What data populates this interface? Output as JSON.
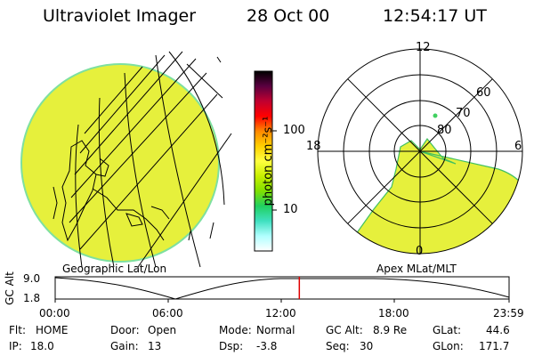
{
  "header": {
    "instrument": "Ultraviolet Imager",
    "date": "28 Oct 00",
    "time": "12:54:17 UT"
  },
  "colorbar": {
    "label": "photon cm⁻²s⁻¹",
    "ticks": [
      "100",
      "10"
    ],
    "scale": "log",
    "colors": [
      "#000000",
      "#5a0040",
      "#c00030",
      "#ff0000",
      "#ff8800",
      "#ffd000",
      "#ffff40",
      "#c8f000",
      "#80e000",
      "#20d060",
      "#40e0c0",
      "#b0ffff",
      "#ffffff"
    ]
  },
  "left_panel": {
    "caption": "Geographic Lat/Lon",
    "fill_color": "#e6f03c",
    "edge_color": "#7ee0a0"
  },
  "right_panel": {
    "caption": "Apex MLat/MLT",
    "mlt_labels": {
      "top": "12",
      "left": "18",
      "right": "6",
      "bottom": "0"
    },
    "lat_labels": [
      "80",
      "70",
      "60"
    ],
    "fill_color": "#e6f03c"
  },
  "timeline": {
    "y_axis_label": "GC Alt",
    "y_ticks": [
      "9.0",
      "1.8"
    ],
    "x_ticks": [
      "00:00",
      "06:00",
      "12:00",
      "18:00",
      "23:59"
    ],
    "marker_time": "12:54",
    "marker_color": "#e00000"
  },
  "status": {
    "flt_label": "Flt:",
    "flt_value": "HOME",
    "ip_label": "IP:",
    "ip_value": "18.0",
    "door_label": "Door:",
    "door_value": "Open",
    "gain_label": "Gain:",
    "gain_value": "13",
    "mode_label": "Mode:",
    "mode_value": "Normal",
    "dsp_label": "Dsp:",
    "dsp_value": "-3.8",
    "gcalt_label": "GC Alt:",
    "gcalt_value": "8.9 Re",
    "seq_label": "Seq:",
    "seq_value": "30",
    "glat_label": "GLat:",
    "glat_value": "44.6",
    "glon_label": "GLon:",
    "glon_value": "171.7"
  }
}
